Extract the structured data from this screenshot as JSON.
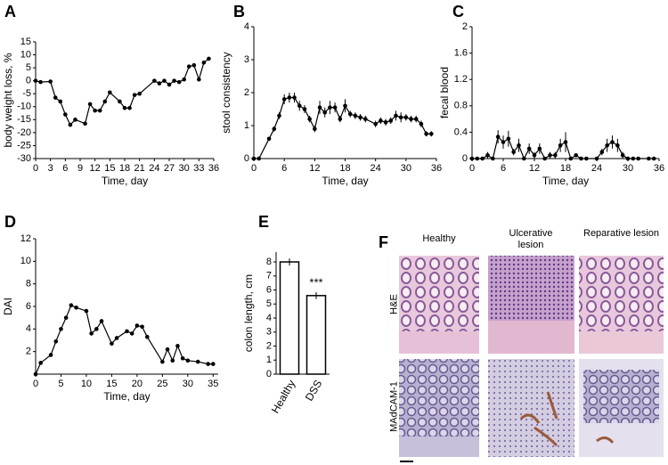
{
  "chart_data": [
    {
      "type": "line",
      "panel_label": "A",
      "xlabel": "Time, day",
      "ylabel": "body weight loss, %",
      "color": "#000000",
      "x": [
        0,
        1,
        3,
        4,
        5,
        6,
        7,
        8,
        10,
        11,
        12,
        13,
        14,
        15,
        17,
        18,
        19,
        20,
        21,
        24,
        25,
        26,
        27,
        28,
        29,
        30,
        31,
        32,
        33,
        34,
        35
      ],
      "values": [
        0,
        -0.5,
        -0.3,
        -6.5,
        -8,
        -13,
        -17,
        -15,
        -16.5,
        -9,
        -11.5,
        -11.5,
        -8,
        -4.5,
        -8,
        -10.5,
        -10.5,
        -5.5,
        -5,
        0,
        -1,
        0,
        -1.5,
        0,
        -0.5,
        0.5,
        5.5,
        6,
        0.5,
        7,
        8.5
      ],
      "xlim": [
        0,
        36
      ],
      "ylim": [
        -30,
        15
      ],
      "xticks": [
        0,
        3,
        6,
        9,
        12,
        15,
        18,
        21,
        24,
        27,
        30,
        33,
        36
      ],
      "yticks": [
        -30,
        -25,
        -20,
        -15,
        -10,
        -5,
        0,
        5,
        10,
        15
      ]
    },
    {
      "type": "line",
      "panel_label": "B",
      "xlabel": "Time, day",
      "ylabel": "stool consistency",
      "color": "#000000",
      "x": [
        0,
        1,
        3,
        4,
        5,
        6,
        7,
        8,
        9,
        10,
        11,
        12,
        13,
        14,
        15,
        16,
        17,
        18,
        19,
        20,
        21,
        22,
        24,
        25,
        26,
        27,
        28,
        29,
        30,
        31,
        32,
        33,
        34,
        35
      ],
      "values": [
        0,
        0,
        0.6,
        0.9,
        1.3,
        1.8,
        1.85,
        1.85,
        1.6,
        1.5,
        1.2,
        0.9,
        1.55,
        1.4,
        1.55,
        1.55,
        1.2,
        1.6,
        1.35,
        1.3,
        1.25,
        1.2,
        1.05,
        1.15,
        1.1,
        1.15,
        1.3,
        1.25,
        1.25,
        1.2,
        1.2,
        1.05,
        0.75,
        0.75
      ],
      "errors": [
        0,
        0,
        0.05,
        0.08,
        0.1,
        0.15,
        0.15,
        0.15,
        0.15,
        0.12,
        0.1,
        0.1,
        0.2,
        0.15,
        0.2,
        0.15,
        0.1,
        0.2,
        0.1,
        0.1,
        0.1,
        0.1,
        0.1,
        0.1,
        0.1,
        0.1,
        0.15,
        0.15,
        0.1,
        0.1,
        0.1,
        0.1,
        0.08,
        0.08
      ],
      "xlim": [
        0,
        36
      ],
      "ylim": [
        0,
        4
      ],
      "xticks": [
        0,
        6,
        12,
        18,
        24,
        30,
        36
      ],
      "yticks": [
        0,
        1,
        2,
        3,
        4
      ]
    },
    {
      "type": "line",
      "panel_label": "C",
      "xlabel": "Time, day",
      "ylabel": "fecal blood",
      "color": "#000000",
      "x": [
        0,
        1,
        2,
        3,
        4,
        5,
        6,
        7,
        8,
        9,
        10,
        11,
        12,
        13,
        14,
        15,
        16,
        17,
        18,
        19,
        20,
        21,
        22,
        24,
        25,
        26,
        27,
        28,
        29,
        30,
        31,
        32,
        34,
        35
      ],
      "values": [
        0,
        0,
        0,
        0.05,
        0,
        0.33,
        0.25,
        0.3,
        0.1,
        0.2,
        0,
        0.15,
        0.05,
        0.15,
        0,
        0.05,
        0.05,
        0.2,
        0.25,
        0,
        0.05,
        0,
        0,
        0,
        0.1,
        0.2,
        0.25,
        0.2,
        0.05,
        0,
        0,
        0,
        0,
        0
      ],
      "errors": [
        0,
        0,
        0,
        0.05,
        0,
        0.1,
        0.1,
        0.12,
        0.05,
        0.1,
        0,
        0.08,
        0.05,
        0.08,
        0,
        0.05,
        0.05,
        0.1,
        0.15,
        0,
        0.03,
        0,
        0,
        0,
        0.05,
        0.1,
        0.1,
        0.1,
        0.05,
        0,
        0,
        0,
        0,
        0
      ],
      "xlim": [
        0,
        36
      ],
      "ylim": [
        0,
        2
      ],
      "xticks": [
        0,
        6,
        12,
        18,
        24,
        30,
        36
      ],
      "yticks": [
        0,
        0.4,
        0.8,
        1.2,
        1.6,
        2
      ]
    },
    {
      "type": "line",
      "panel_label": "D",
      "xlabel": "Time, day",
      "ylabel": "DAI",
      "color": "#000000",
      "x": [
        0,
        1,
        3,
        4,
        5,
        6,
        7,
        8,
        10,
        11,
        12,
        13,
        15,
        16,
        18,
        19,
        20,
        21,
        22,
        25,
        26,
        27,
        28,
        29,
        30,
        32,
        34,
        35
      ],
      "values": [
        0,
        1,
        1.7,
        2.9,
        4,
        5,
        6.1,
        5.9,
        5.6,
        3.6,
        4,
        4.7,
        2.7,
        3.2,
        3.8,
        3.6,
        4.3,
        4.2,
        3.3,
        1.1,
        2.2,
        1.2,
        2.5,
        1.4,
        1.2,
        1.1,
        0.9,
        0.9
      ],
      "xlim": [
        0,
        36
      ],
      "ylim": [
        0,
        12
      ],
      "xticks": [
        0,
        5,
        10,
        15,
        20,
        25,
        30,
        35
      ],
      "yticks": [
        2,
        4,
        6,
        8,
        10,
        12
      ]
    },
    {
      "type": "bar",
      "panel_label": "E",
      "ylabel": "colon length, cm",
      "color": "#ffffff",
      "annotation": "***",
      "categories": [
        "Healthy",
        "DSS"
      ],
      "values": [
        8,
        5.6
      ],
      "errors": [
        0.25,
        0.25
      ],
      "ylim": [
        0,
        8.7
      ],
      "yticks": [
        0,
        1,
        2,
        3,
        4,
        5,
        6,
        7,
        8
      ]
    }
  ],
  "figure_f": {
    "panel_label": "F",
    "columns": [
      "Healthy",
      "Ulcerative lesion",
      "Reparative lesion"
    ],
    "rows": [
      "H&E",
      "MAdCAM-1"
    ]
  }
}
